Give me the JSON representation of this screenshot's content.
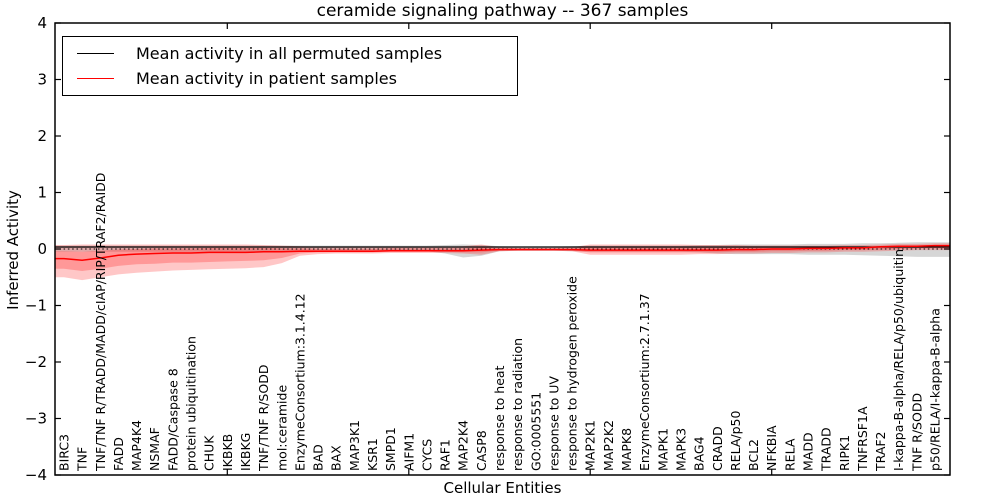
{
  "chart_data": {
    "type": "line",
    "title": "ceramide signaling pathway -- 367 samples",
    "xlabel": "Cellular Entities",
    "ylabel": "Inferred Activity",
    "ylim": [
      -4,
      4
    ],
    "yticks": [
      -4,
      -3,
      -2,
      -1,
      0,
      1,
      2,
      3,
      4
    ],
    "xtick_sample_positions": [
      10,
      20,
      30,
      40
    ],
    "grid": false,
    "legend_position": "upper-left",
    "categories": [
      "BIRC3",
      "TNF",
      "TNF/TNF R/TRADD/MADD/cIAP/RIP/TRAF2/RAIDD",
      "FADD",
      "MAP4K4",
      "NSMAF",
      "FADD/Caspase 8",
      "protein ubiquitination",
      "CHUK",
      "IKBKB",
      "IKBKG",
      "TNF/TNF R/SODD",
      "mol:ceramide",
      "EnzymeConsortium:3.1.4.12",
      "BAD",
      "BAX",
      "MAP3K1",
      "KSR1",
      "SMPD1",
      "AIFM1",
      "CYCS",
      "RAF1",
      "MAP2K4",
      "CASP8",
      "response to heat",
      "response to radiation",
      "GO:0005551",
      "response to UV",
      "response to hydrogen peroxide",
      "MAP2K1",
      "MAP2K2",
      "MAPK8",
      "EnzymeConsortium:2.7.1.37",
      "MAPK1",
      "MAPK3",
      "BAG4",
      "CRADD",
      "RELA/p50",
      "BCL2",
      "NFKBIA",
      "RELA",
      "MADD",
      "TRADD",
      "RIPK1",
      "TNFRSF1A",
      "TRAF2",
      "I-kappa-B-alpha/RELA/p50/ubiquitin",
      "TNF R/SODD",
      "p50/RELA/I-kappa-B-alpha"
    ],
    "series": [
      {
        "name": "Mean activity in all permuted samples",
        "color": "#000000",
        "values": [
          0.035,
          0.035,
          0.035,
          0.035,
          0.035,
          0.035,
          0.035,
          0.035,
          0.035,
          0.035,
          0.035,
          0.035,
          0.035,
          0.035,
          0.035,
          0.035,
          0.035,
          0.035,
          0.035,
          0.035,
          0.035,
          0.035,
          0.035,
          0.035,
          0.035,
          0.035,
          0.035,
          0.035,
          0.035,
          0.035,
          0.035,
          0.035,
          0.035,
          0.035,
          0.035,
          0.035,
          0.035,
          0.035,
          0.035,
          0.035,
          0.035,
          0.035,
          0.035,
          0.035,
          0.035,
          0.035,
          0.035,
          0.035,
          0.035
        ]
      },
      {
        "name": "Mean activity in patient samples",
        "color": "#ff0000",
        "values": [
          -0.17,
          -0.2,
          -0.16,
          -0.11,
          -0.09,
          -0.08,
          -0.07,
          -0.07,
          -0.06,
          -0.06,
          -0.06,
          -0.05,
          -0.05,
          -0.04,
          -0.04,
          -0.04,
          -0.04,
          -0.04,
          -0.03,
          -0.03,
          -0.03,
          -0.03,
          -0.03,
          -0.02,
          -0.01,
          -0.01,
          -0.01,
          -0.01,
          -0.01,
          -0.02,
          -0.02,
          -0.02,
          -0.02,
          -0.02,
          -0.02,
          -0.02,
          -0.02,
          -0.01,
          -0.01,
          0.0,
          0.0,
          0.01,
          0.01,
          0.02,
          0.02,
          0.04,
          0.05,
          0.05,
          0.06
        ]
      }
    ],
    "bands": [
      {
        "name": "permuted-samples-range",
        "color": "#999999",
        "opacity": 0.4,
        "low": [
          -0.05,
          -0.05,
          -0.05,
          -0.05,
          -0.05,
          -0.05,
          -0.05,
          -0.05,
          -0.05,
          -0.05,
          -0.05,
          -0.05,
          -0.05,
          -0.04,
          -0.04,
          -0.04,
          -0.04,
          -0.04,
          -0.04,
          -0.04,
          -0.04,
          -0.08,
          -0.15,
          -0.12,
          -0.04,
          -0.03,
          -0.03,
          -0.03,
          -0.04,
          -0.05,
          -0.05,
          -0.05,
          -0.05,
          -0.05,
          -0.05,
          -0.06,
          -0.08,
          -0.09,
          -0.09,
          -0.09,
          -0.09,
          -0.1,
          -0.1,
          -0.1,
          -0.11,
          -0.12,
          -0.13,
          -0.14,
          -0.14
        ],
        "high": [
          0.06,
          0.06,
          0.06,
          0.06,
          0.06,
          0.06,
          0.06,
          0.06,
          0.06,
          0.06,
          0.06,
          0.06,
          0.06,
          0.06,
          0.06,
          0.06,
          0.06,
          0.06,
          0.06,
          0.06,
          0.06,
          0.07,
          0.08,
          0.07,
          0.05,
          0.04,
          0.04,
          0.04,
          0.05,
          0.06,
          0.06,
          0.06,
          0.06,
          0.06,
          0.06,
          0.07,
          0.07,
          0.08,
          0.08,
          0.08,
          0.08,
          0.09,
          0.09,
          0.09,
          0.1,
          0.1,
          0.11,
          0.12,
          0.12
        ]
      },
      {
        "name": "patient-samples-range-outer",
        "color": "#ff2020",
        "opacity": 0.25,
        "low": [
          -0.5,
          -0.55,
          -0.5,
          -0.45,
          -0.42,
          -0.4,
          -0.38,
          -0.37,
          -0.36,
          -0.35,
          -0.34,
          -0.32,
          -0.25,
          -0.12,
          -0.09,
          -0.08,
          -0.08,
          -0.08,
          -0.07,
          -0.07,
          -0.07,
          -0.07,
          -0.08,
          -0.1,
          -0.04,
          -0.03,
          -0.03,
          -0.03,
          -0.04,
          -0.1,
          -0.1,
          -0.1,
          -0.1,
          -0.1,
          -0.1,
          -0.09,
          -0.09,
          -0.08,
          -0.08,
          -0.07,
          -0.07,
          -0.06,
          -0.06,
          -0.05,
          -0.05,
          -0.04,
          -0.03,
          -0.02,
          -0.02
        ],
        "high": [
          0.07,
          0.08,
          0.08,
          0.08,
          0.08,
          0.08,
          0.08,
          0.08,
          0.08,
          0.08,
          0.08,
          0.07,
          0.06,
          0.05,
          0.04,
          0.04,
          0.04,
          0.04,
          0.04,
          0.04,
          0.04,
          0.04,
          0.05,
          0.08,
          0.03,
          0.02,
          0.02,
          0.02,
          0.03,
          0.08,
          0.08,
          0.08,
          0.08,
          0.08,
          0.08,
          0.07,
          0.07,
          0.07,
          0.06,
          0.06,
          0.06,
          0.06,
          0.06,
          0.07,
          0.07,
          0.08,
          0.09,
          0.09,
          0.1
        ]
      },
      {
        "name": "patient-samples-range-inner",
        "color": "#ff2020",
        "opacity": 0.28,
        "low": [
          -0.35,
          -0.39,
          -0.35,
          -0.3,
          -0.27,
          -0.26,
          -0.24,
          -0.24,
          -0.23,
          -0.22,
          -0.21,
          -0.2,
          -0.16,
          -0.08,
          -0.06,
          -0.06,
          -0.06,
          -0.06,
          -0.05,
          -0.05,
          -0.05,
          -0.05,
          -0.06,
          -0.06,
          -0.03,
          -0.02,
          -0.02,
          -0.02,
          -0.03,
          -0.06,
          -0.06,
          -0.06,
          -0.06,
          -0.06,
          -0.06,
          -0.06,
          -0.06,
          -0.05,
          -0.05,
          -0.04,
          -0.04,
          -0.03,
          -0.03,
          -0.02,
          -0.02,
          -0.01,
          0.0,
          0.01,
          0.01
        ],
        "high": [
          -0.04,
          -0.05,
          -0.03,
          -0.01,
          0.0,
          0.01,
          0.01,
          0.01,
          0.02,
          0.02,
          0.02,
          0.02,
          0.01,
          0.01,
          0.0,
          0.0,
          0.0,
          0.0,
          0.01,
          0.01,
          0.01,
          0.01,
          0.01,
          0.03,
          0.01,
          0.01,
          0.01,
          0.01,
          0.01,
          0.04,
          0.04,
          0.04,
          0.04,
          0.04,
          0.04,
          0.04,
          0.04,
          0.04,
          0.03,
          0.03,
          0.03,
          0.03,
          0.04,
          0.04,
          0.04,
          0.05,
          0.06,
          0.06,
          0.07
        ]
      }
    ],
    "zero_line": {
      "y": 0,
      "style": "dotted",
      "color": "#000000"
    }
  }
}
